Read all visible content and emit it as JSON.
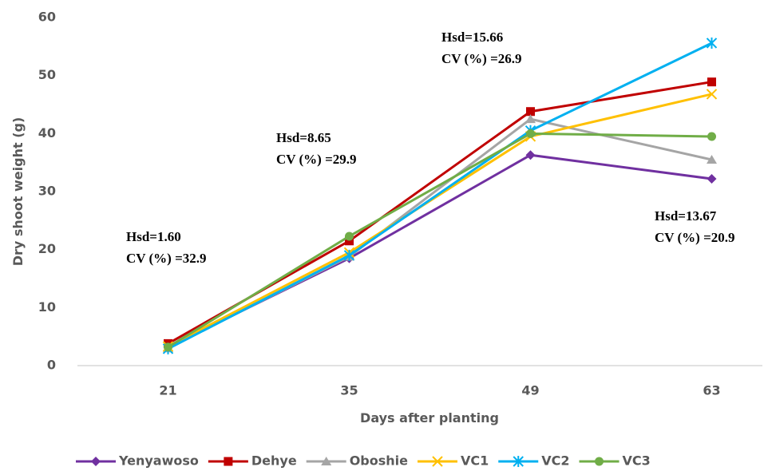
{
  "chart_data": {
    "type": "line",
    "x_label": "Days after planting",
    "y_label": "Dry shoot weight (g)",
    "categories": [
      "21",
      "35",
      "49",
      "63"
    ],
    "series": [
      {
        "name": "Yenyawoso",
        "color": "#7030a0",
        "marker": "diamond",
        "values": [
          3.2,
          18.5,
          36.3,
          32.2
        ]
      },
      {
        "name": "Dehye",
        "color": "#c00000",
        "marker": "square",
        "values": [
          3.8,
          21.5,
          43.8,
          48.9
        ]
      },
      {
        "name": "Oboshie",
        "color": "#a5a5a5",
        "marker": "triangle",
        "values": [
          3.0,
          18.8,
          42.5,
          35.5
        ]
      },
      {
        "name": "VC1",
        "color": "#ffc000",
        "marker": "x",
        "values": [
          3.3,
          19.5,
          39.5,
          46.8
        ]
      },
      {
        "name": "VC2",
        "color": "#00b0f0",
        "marker": "star",
        "values": [
          2.9,
          19.0,
          40.5,
          55.6
        ]
      },
      {
        "name": "VC3",
        "color": "#70ad47",
        "marker": "circle",
        "values": [
          3.2,
          22.3,
          40.0,
          39.5
        ]
      }
    ],
    "ylim": [
      0,
      60
    ],
    "yticks": [
      0,
      10,
      20,
      30,
      40,
      50,
      60
    ],
    "grid": false,
    "legend": "bottom",
    "annotations": [
      [
        "Hsd=1.60",
        "CV (%) =32.9"
      ],
      [
        "Hsd=8.65",
        "CV (%) =29.9"
      ],
      [
        "Hsd=15.66",
        "CV (%) =26.9"
      ],
      [
        "Hsd=13.67",
        "CV (%) =20.9"
      ]
    ]
  }
}
